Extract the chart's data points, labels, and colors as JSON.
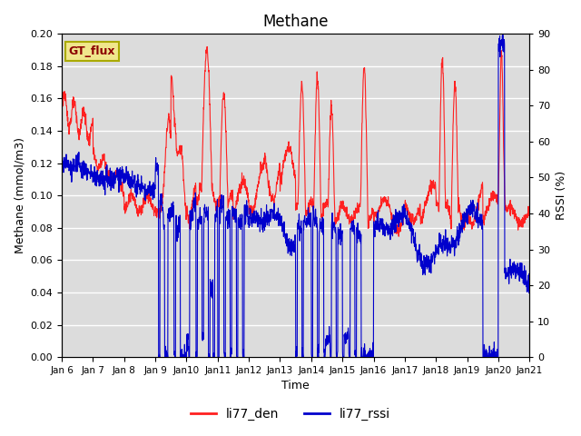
{
  "title": "Methane",
  "xlabel": "Time",
  "ylabel_left": "Methane (mmol/m3)",
  "ylabel_right": "RSSI (%)",
  "ylim_left": [
    0.0,
    0.2
  ],
  "ylim_right": [
    0,
    90
  ],
  "yticks_left": [
    0.0,
    0.02,
    0.04,
    0.06,
    0.08,
    0.1,
    0.12,
    0.14,
    0.16,
    0.18,
    0.2
  ],
  "yticks_right": [
    0,
    10,
    20,
    30,
    40,
    50,
    60,
    70,
    80,
    90
  ],
  "background_color": "#dcdcdc",
  "legend_label_red": "li77_den",
  "legend_label_blue": "li77_rssi",
  "box_label": "GT_flux",
  "box_color": "#f0e68c",
  "box_text_color": "#8b0000",
  "red_color": "#ff2020",
  "blue_color": "#0000cc",
  "line_width": 0.8,
  "grid_color": "#ffffff",
  "spine_color": "#aaaaaa"
}
